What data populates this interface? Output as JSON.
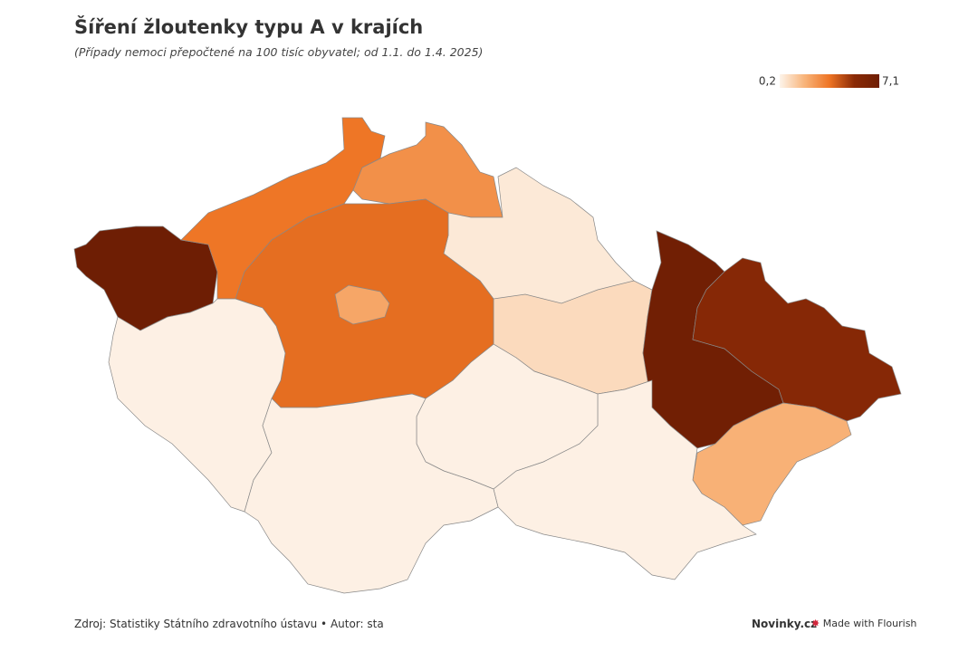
{
  "header": {
    "title": "Šíření žloutenky typu A v krajích",
    "subtitle": "(Případy nemoci přepočtené na 100 tisíc obyvatel; od 1.1. do 1.4. 2025)"
  },
  "map": {
    "type": "choropleth",
    "legend": {
      "min": {
        "value": 0.2,
        "label": "0,2"
      },
      "max": {
        "value": 7.1,
        "label": "7,1"
      }
    },
    "colorscale": [
      "#fdf4ea",
      "#f8b47a",
      "#ee7424",
      "#8a2a06",
      "#6e1e04"
    ],
    "regions": [
      {
        "value": 7.1
      },
      {
        "value": 3.6
      },
      {
        "value": 2.9
      },
      {
        "value": 0.5
      },
      {
        "value": 0.9
      },
      {
        "value": 6.9
      },
      {
        "value": 5.6
      },
      {
        "value": 2.0
      },
      {
        "value": 0.3
      },
      {
        "value": 0.3
      },
      {
        "value": 3.8
      },
      {
        "value": 2.3
      },
      {
        "value": 0.3
      },
      {
        "value": 0.3
      }
    ]
  },
  "footer": {
    "source": "Zdroj: Statistiky Státního zdravotního ústavu • Autor: sta",
    "brand": "Novinky.cz",
    "made_with": "Made with Flourish"
  }
}
